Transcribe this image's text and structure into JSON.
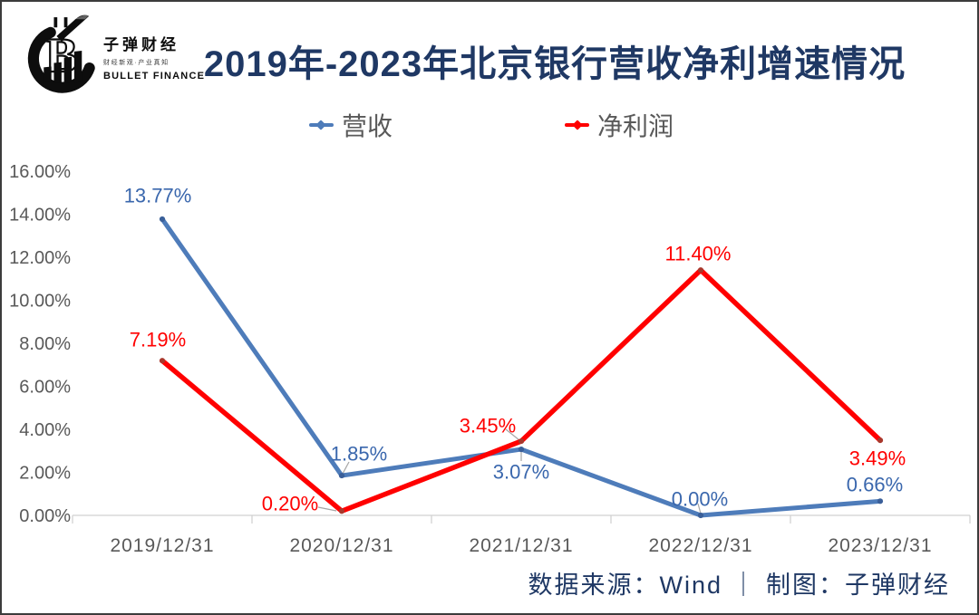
{
  "brand": {
    "name_cn": "子弹财经",
    "tagline": "财经新观·产业真知",
    "name_en": "BULLET FINANCE"
  },
  "title": "2019年-2023年北京银行营收净利增速情况",
  "legend": [
    {
      "label": "营收",
      "color": "#4e7cba"
    },
    {
      "label": "净利润",
      "color": "#ff0000"
    }
  ],
  "footer": "数据来源：Wind ｜ 制图：子弹财经",
  "colors": {
    "title_navy": "#1f3864",
    "axis_gray": "#595959",
    "axis_line": "#d9d9d9",
    "leader_line": "#a6a6a6"
  },
  "chart_data": {
    "type": "line",
    "title": "2019年-2023年北京银行营收净利增速情况",
    "categories": [
      "2019/12/31",
      "2020/12/31",
      "2021/12/31",
      "2022/12/31",
      "2023/12/31"
    ],
    "series": [
      {
        "name": "营收",
        "color": "#4e7cba",
        "label_color": "#3a67ad",
        "values": [
          13.77,
          1.85,
          3.07,
          0.0,
          0.66
        ],
        "labels": [
          "13.77%",
          "1.85%",
          "3.07%",
          "0.00%",
          "0.66%"
        ]
      },
      {
        "name": "净利润",
        "color": "#ff0000",
        "label_color": "#ff0000",
        "values": [
          7.19,
          0.2,
          3.45,
          11.4,
          3.49
        ],
        "labels": [
          "7.19%",
          "0.20%",
          "3.45%",
          "11.40%",
          "3.49%"
        ]
      }
    ],
    "ylim": [
      0,
      16
    ],
    "ytick_step": 2,
    "ytick_labels": [
      "0.00%",
      "2.00%",
      "4.00%",
      "6.00%",
      "8.00%",
      "10.00%",
      "12.00%",
      "14.00%",
      "16.00%"
    ],
    "grid": false,
    "legend_position": "top"
  }
}
